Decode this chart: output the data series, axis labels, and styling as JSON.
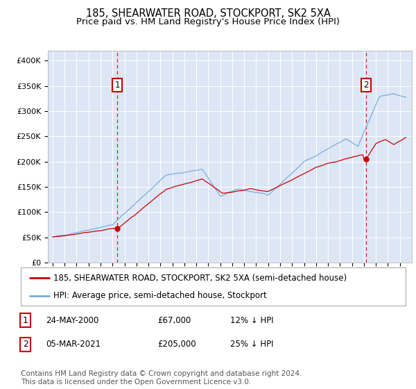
{
  "title": "185, SHEARWATER ROAD, STOCKPORT, SK2 5XA",
  "subtitle": "Price paid vs. HM Land Registry's House Price Index (HPI)",
  "ylim": [
    0,
    420000
  ],
  "yticks": [
    0,
    50000,
    100000,
    150000,
    200000,
    250000,
    300000,
    350000,
    400000
  ],
  "ytick_labels": [
    "£0",
    "£50K",
    "£100K",
    "£150K",
    "£200K",
    "£250K",
    "£300K",
    "£350K",
    "£400K"
  ],
  "background_color": "#ffffff",
  "plot_bg_color": "#dce6f5",
  "red_line_color": "#cc0000",
  "blue_line_color": "#7aaddc",
  "sale1_date_num": 2000.4,
  "sale1_price": 67000,
  "sale2_date_num": 2021.17,
  "sale2_price": 205000,
  "legend_red_label": "185, SHEARWATER ROAD, STOCKPORT, SK2 5XA (semi-detached house)",
  "legend_blue_label": "HPI: Average price, semi-detached house, Stockport",
  "table_rows": [
    [
      "1",
      "24-MAY-2000",
      "£67,000",
      "12% ↓ HPI"
    ],
    [
      "2",
      "05-MAR-2021",
      "£205,000",
      "25% ↓ HPI"
    ]
  ],
  "footnote": "Contains HM Land Registry data © Crown copyright and database right 2024.\nThis data is licensed under the Open Government Licence v3.0.",
  "title_fontsize": 10.5,
  "subtitle_fontsize": 9.5,
  "tick_fontsize": 8,
  "legend_fontsize": 8.5,
  "table_fontsize": 8.5,
  "footnote_fontsize": 7.5,
  "xmin": 1994.6,
  "xmax": 2025.0
}
